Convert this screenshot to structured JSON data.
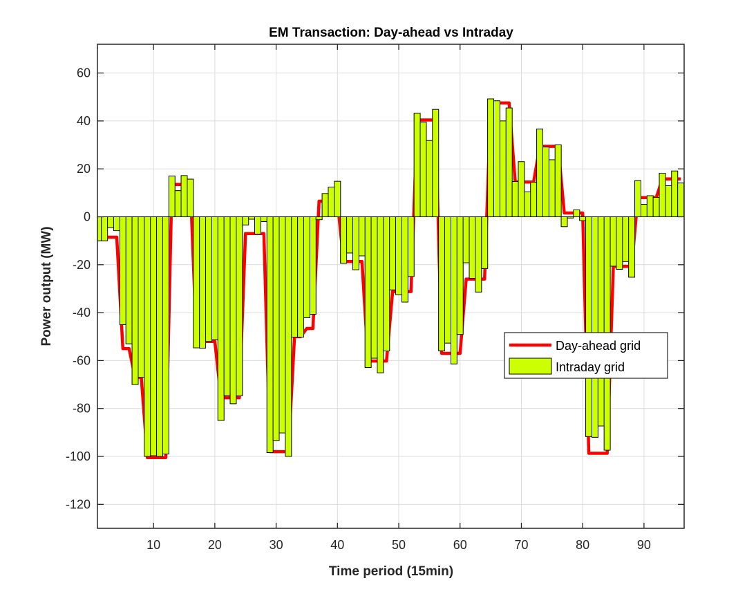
{
  "chart_data": {
    "type": "bar",
    "title": "EM Transaction: Day-ahead vs Intraday",
    "xlabel": "Time period (15min)",
    "ylabel": "Power output (MW)",
    "xlim": [
      0.85,
      96.55
    ],
    "ylim": [
      -130,
      72
    ],
    "xticks": [
      10,
      20,
      30,
      40,
      50,
      60,
      70,
      80,
      90
    ],
    "yticks": [
      -120,
      -100,
      -80,
      -60,
      -40,
      -20,
      0,
      20,
      40,
      60
    ],
    "grid": true,
    "legend_position": "right-middle",
    "colors": {
      "day_ahead": "#FF0000",
      "intraday": "#CCFF00",
      "edge": "#000000"
    },
    "series": [
      {
        "name": "Day-ahead grid",
        "type": "line",
        "values": [
          -8.5,
          -8.5,
          -8.5,
          -8.5,
          -55,
          -55,
          -67,
          -67,
          -100.5,
          -100.5,
          -100.5,
          -100.5,
          13.5,
          13.5,
          13.5,
          13.5,
          -52,
          -52,
          -52,
          -52,
          -75.5,
          -75.5,
          -75.5,
          -75.5,
          -7,
          -7,
          -7,
          -7,
          -98,
          -98,
          -98,
          -98,
          -50,
          -50,
          -46.6,
          -46.6,
          6.5,
          6.5,
          6.5,
          6.5,
          -18.7,
          -18.7,
          -18.7,
          -18.7,
          -60.2,
          -60.2,
          -60.2,
          -60.2,
          -31.2,
          -31.2,
          -31.2,
          -31.2,
          40.4,
          40.4,
          40.4,
          40.4,
          -57,
          -57,
          -57,
          -57,
          -26,
          -26,
          -26,
          -26,
          47.5,
          47.5,
          47.5,
          47.5,
          14.5,
          14.5,
          14.5,
          14.5,
          29.4,
          29.4,
          29.4,
          29.4,
          1.6,
          1.6,
          1.6,
          1.6,
          -98.7,
          -98.7,
          -98.7,
          -98.7,
          -20.7,
          -20.7,
          -20.7,
          -20.7,
          8,
          8,
          8,
          8,
          15.8,
          15.8,
          15.8,
          15.8
        ]
      },
      {
        "name": "Intraday grid",
        "type": "bar",
        "values": [
          -10,
          -10,
          -4.5,
          -5.8,
          -45,
          -53,
          -70,
          -67,
          -100,
          -99.7,
          -100,
          -99,
          17,
          10.9,
          17.2,
          15.7,
          -54.7,
          -54.8,
          -52,
          -51.3,
          -85,
          -74.5,
          -78,
          -74.7,
          -3.4,
          -1,
          -7.2,
          -2,
          -98.4,
          -93.4,
          -90.2,
          -100,
          -50.2,
          -50.2,
          -42.1,
          -40.7,
          -1.2,
          9.7,
          12.4,
          14.8,
          -19.4,
          -15.1,
          -22.1,
          -16.3,
          -62.9,
          -59,
          -65.1,
          -56,
          -30.5,
          -32.5,
          -35.6,
          -24.9,
          43.2,
          39.5,
          31.8,
          44.8,
          -55.9,
          -52.7,
          -61.4,
          -49.1,
          -19.2,
          -25.7,
          -31.4,
          -21.6,
          49.2,
          48.4,
          40,
          45.4,
          14.7,
          23,
          10.4,
          14.4,
          36.6,
          29.1,
          23.8,
          30,
          -4.1,
          -0.5,
          2.9,
          -1.6,
          -91.7,
          -92,
          -87.3,
          -97.4,
          -20.6,
          -21.9,
          -18.7,
          -25.2,
          15.1,
          5.2,
          8.8,
          8.1,
          18.2,
          13,
          19.1,
          14.1
        ]
      }
    ]
  }
}
